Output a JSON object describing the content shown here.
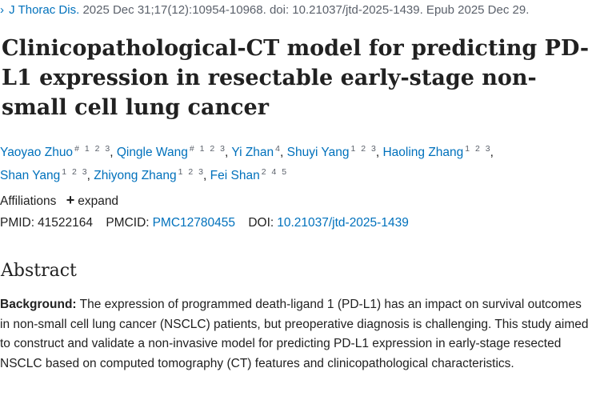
{
  "citation": {
    "arrow": "›",
    "journal": "J Thorac Dis.",
    "details": "2025 Dec 31;17(12):10954-10968. doi: 10.21037/jtd-2025-1439. Epub 2025 Dec 29."
  },
  "title": "Clinicopathological-CT model for predicting PD-L1 expression in resectable early-stage non-small cell lung cancer",
  "authors": [
    {
      "name": "Yaoyao Zhuo",
      "marks": "# 1 2 3",
      "sep": ", "
    },
    {
      "name": "Qingle Wang",
      "marks": "# 1 2 3",
      "sep": ", "
    },
    {
      "name": "Yi Zhan",
      "marks": "4",
      "sep": ", "
    },
    {
      "name": "Shuyi Yang",
      "marks": "1 2 3",
      "sep": ", "
    },
    {
      "name": "Haoling Zhang",
      "marks": "1 2 3",
      "sep": ", "
    },
    {
      "name": "Shan Yang",
      "marks": "1 2 3",
      "sep": ", "
    },
    {
      "name": "Zhiyong Zhang",
      "marks": "1 2 3",
      "sep": ", "
    },
    {
      "name": "Fei Shan",
      "marks": "2 4 5",
      "sep": ""
    }
  ],
  "affiliations": {
    "label": "Affiliations",
    "plus": "+",
    "expand": "expand"
  },
  "ids": {
    "pmid_label": "PMID:",
    "pmid": "41522164",
    "pmcid_label": "PMCID:",
    "pmcid": "PMC12780455",
    "doi_label": "DOI:",
    "doi": "10.21037/jtd-2025-1439"
  },
  "abstract": {
    "heading": "Abstract",
    "background_label": "Background:",
    "background_text": "The expression of programmed death-ligand 1 (PD-L1) has an impact on survival outcomes in non-small cell lung cancer (NSCLC) patients, but preoperative diagnosis is challenging. This study aimed to construct and validate a non-invasive model for predicting PD-L1 expression in early-stage resected NSCLC based on computed tomography (CT) features and clinicopathological characteristics."
  }
}
